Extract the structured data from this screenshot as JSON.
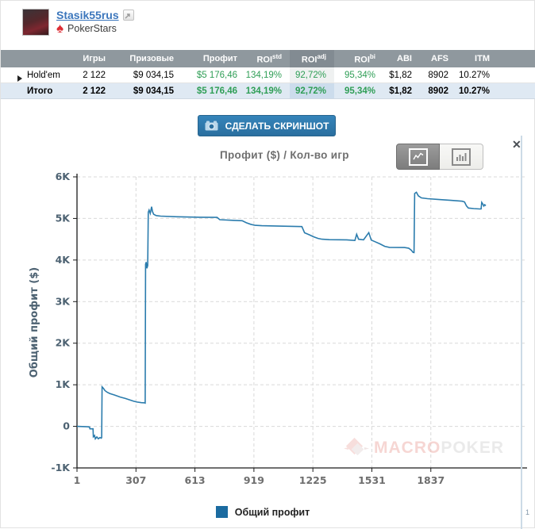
{
  "header": {
    "username": "Stasik55rus",
    "site": "PokerStars",
    "spade_glyph": "♠"
  },
  "stats_table": {
    "headers": [
      {
        "label": "Игры"
      },
      {
        "label": "Призовые"
      },
      {
        "label": "Профит"
      },
      {
        "label": "ROI",
        "sup": "std"
      },
      {
        "label": "ROI",
        "sup": "adj"
      },
      {
        "label": "ROI",
        "sup": "bi"
      },
      {
        "label": "ABI"
      },
      {
        "label": "AFS"
      },
      {
        "label": "ITM"
      }
    ],
    "rows": [
      {
        "name": "Hold'em",
        "games": "2 122",
        "prizes": "$9 034,15",
        "profit": "$5 176,46",
        "roi_std": "134,19%",
        "roi_adj": "92,72%",
        "roi_bi": "95,34%",
        "abi": "$1,82",
        "afs": "8902",
        "itm": "10.27%"
      },
      {
        "name": "Итого",
        "games": "2 122",
        "prizes": "$9 034,15",
        "profit": "$5 176,46",
        "roi_std": "134,19%",
        "roi_adj": "92,72%",
        "roi_bi": "95,34%",
        "abi": "$1,82",
        "afs": "8902",
        "itm": "10.27%"
      }
    ]
  },
  "toolbar": {
    "screenshot_label": "СДЕЛАТЬ СКРИНШОТ"
  },
  "close_label": "✕",
  "watermark": {
    "macro": "MACRO",
    "poker": "POKER"
  },
  "legend": {
    "label": "Общий профит"
  },
  "page_number": "1",
  "chart_data": {
    "type": "line",
    "title": "Профит ($) / Кол-во игр",
    "ylabel": "Общий профит ($)",
    "series_name": "Общий профит",
    "x_ticks": [
      1,
      307,
      613,
      919,
      1225,
      1531,
      1837
    ],
    "y_ticks": [
      -1000,
      0,
      1000,
      2000,
      3000,
      4000,
      5000,
      6000
    ],
    "y_tick_labels": [
      "-1K",
      "0",
      "1K",
      "2K",
      "3K",
      "4K",
      "5K",
      "6K"
    ],
    "xlim": [
      1,
      2324
    ],
    "ylim": [
      -1000,
      6000
    ],
    "grid": "dashed",
    "legend_position": "bottom",
    "colors": {
      "line": "#2b7cad",
      "legend": "#1b6ba0",
      "grid": "#d9d9d9",
      "axis": "#1a1a1a",
      "y_text": "#4d6272",
      "x_text": "#6e6e6e"
    },
    "points": [
      [
        1,
        0
      ],
      [
        55,
        -10
      ],
      [
        66,
        -15
      ],
      [
        68,
        -60
      ],
      [
        84,
        -60
      ],
      [
        86,
        -250
      ],
      [
        92,
        -220
      ],
      [
        96,
        -300
      ],
      [
        104,
        -255
      ],
      [
        112,
        -300
      ],
      [
        120,
        -270
      ],
      [
        127,
        -285
      ],
      [
        129,
        -270
      ],
      [
        131,
        950
      ],
      [
        138,
        915
      ],
      [
        146,
        860
      ],
      [
        158,
        820
      ],
      [
        172,
        790
      ],
      [
        195,
        755
      ],
      [
        225,
        705
      ],
      [
        252,
        670
      ],
      [
        275,
        635
      ],
      [
        295,
        605
      ],
      [
        312,
        585
      ],
      [
        335,
        570
      ],
      [
        352,
        565
      ],
      [
        355,
        560
      ],
      [
        357,
        3900
      ],
      [
        360,
        3950
      ],
      [
        364,
        3800
      ],
      [
        368,
        3870
      ],
      [
        371,
        5150
      ],
      [
        375,
        5200
      ],
      [
        381,
        5120
      ],
      [
        388,
        5280
      ],
      [
        393,
        5160
      ],
      [
        399,
        5100
      ],
      [
        412,
        5070
      ],
      [
        435,
        5055
      ],
      [
        520,
        5040
      ],
      [
        640,
        5030
      ],
      [
        728,
        5025
      ],
      [
        742,
        4970
      ],
      [
        810,
        4955
      ],
      [
        858,
        4945
      ],
      [
        880,
        4895
      ],
      [
        902,
        4860
      ],
      [
        925,
        4835
      ],
      [
        960,
        4825
      ],
      [
        1050,
        4815
      ],
      [
        1168,
        4805
      ],
      [
        1182,
        4655
      ],
      [
        1205,
        4610
      ],
      [
        1228,
        4560
      ],
      [
        1252,
        4520
      ],
      [
        1272,
        4500
      ],
      [
        1310,
        4490
      ],
      [
        1400,
        4485
      ],
      [
        1443,
        4470
      ],
      [
        1452,
        4620
      ],
      [
        1462,
        4500
      ],
      [
        1488,
        4485
      ],
      [
        1515,
        4660
      ],
      [
        1528,
        4480
      ],
      [
        1548,
        4440
      ],
      [
        1572,
        4390
      ],
      [
        1598,
        4330
      ],
      [
        1622,
        4305
      ],
      [
        1700,
        4300
      ],
      [
        1722,
        4285
      ],
      [
        1735,
        4240
      ],
      [
        1745,
        4185
      ],
      [
        1750,
        4180
      ],
      [
        1753,
        5600
      ],
      [
        1762,
        5630
      ],
      [
        1772,
        5545
      ],
      [
        1788,
        5495
      ],
      [
        1820,
        5475
      ],
      [
        1880,
        5455
      ],
      [
        1940,
        5435
      ],
      [
        2000,
        5415
      ],
      [
        2012,
        5398
      ],
      [
        2022,
        5300
      ],
      [
        2032,
        5250
      ],
      [
        2060,
        5238
      ],
      [
        2092,
        5228
      ],
      [
        2098,
        5230
      ],
      [
        2101,
        5385
      ],
      [
        2107,
        5345
      ],
      [
        2112,
        5298
      ],
      [
        2117,
        5330
      ],
      [
        2122,
        5305
      ]
    ]
  }
}
